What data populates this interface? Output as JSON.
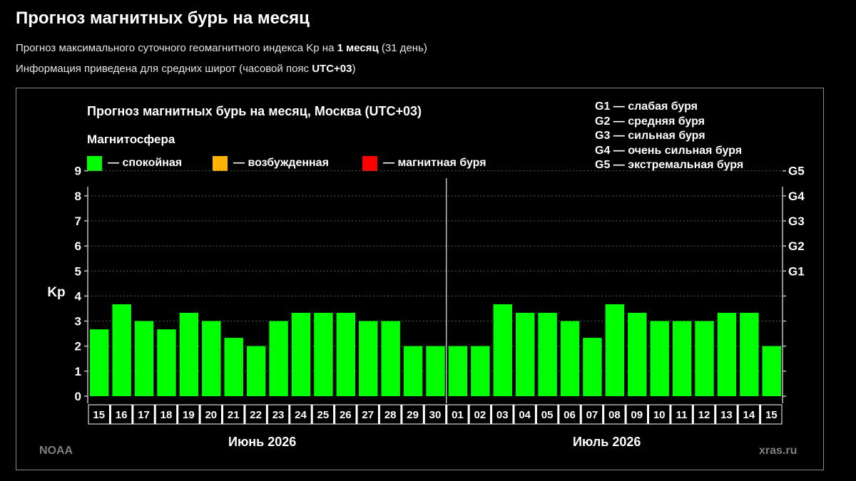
{
  "header": {
    "title": "Прогноз магнитных бурь на месяц",
    "sub1_pre": "Прогноз максимального суточного геомагнитного индекса Kp на ",
    "sub1_bold": "1 месяц",
    "sub1_post": " (31 день)",
    "sub2_pre": "Информация приведена для средних широт (часовой пояс ",
    "sub2_bold": "UTC+03",
    "sub2_post": ")"
  },
  "legend": {
    "title": "Магнитосфера",
    "items": [
      {
        "label": "— спокойная",
        "color": "#00ff00"
      },
      {
        "label": "— возбужденная",
        "color": "#ffb300"
      },
      {
        "label": "— магнитная буря",
        "color": "#ff0000"
      }
    ],
    "g_scale": [
      "G1 — слабая буря",
      "G2 — средняя буря",
      "G3 — сильная буря",
      "G4 — очень сильная буря",
      "G5 — экстремальная буря"
    ]
  },
  "footer": {
    "left": "NOAA",
    "right": "xras.ru"
  },
  "chart_data": {
    "type": "bar",
    "title": "Прогноз магнитных бурь на месяц, Москва (UTC+03)",
    "ylabel": "Kp",
    "ylim": [
      0,
      9
    ],
    "y_ticks": [
      "0",
      "1",
      "2",
      "3",
      "4",
      "5",
      "6",
      "7",
      "8",
      "9"
    ],
    "right_ticks": [
      {
        "label": "G1",
        "kp": 5
      },
      {
        "label": "G2",
        "kp": 6
      },
      {
        "label": "G3",
        "kp": 7
      },
      {
        "label": "G4",
        "kp": 8
      },
      {
        "label": "G5",
        "kp": 9
      }
    ],
    "categories": [
      "15",
      "16",
      "17",
      "18",
      "19",
      "20",
      "21",
      "22",
      "23",
      "24",
      "25",
      "26",
      "27",
      "28",
      "29",
      "30",
      "01",
      "02",
      "03",
      "04",
      "05",
      "06",
      "07",
      "08",
      "09",
      "10",
      "11",
      "12",
      "13",
      "14",
      "15"
    ],
    "values": [
      2.67,
      3.67,
      3.0,
      2.67,
      3.33,
      3.0,
      2.33,
      2.0,
      3.0,
      3.33,
      3.33,
      3.33,
      3.0,
      3.0,
      2.0,
      2.0,
      2.0,
      2.0,
      3.67,
      3.33,
      3.33,
      3.0,
      2.33,
      3.67,
      3.33,
      3.0,
      3.0,
      3.0,
      3.33,
      3.33,
      2.0
    ],
    "bar_color": "#00ff00",
    "months": [
      {
        "label": "Июнь 2026"
      },
      {
        "label": "Июль 2026"
      }
    ],
    "grid": true
  }
}
